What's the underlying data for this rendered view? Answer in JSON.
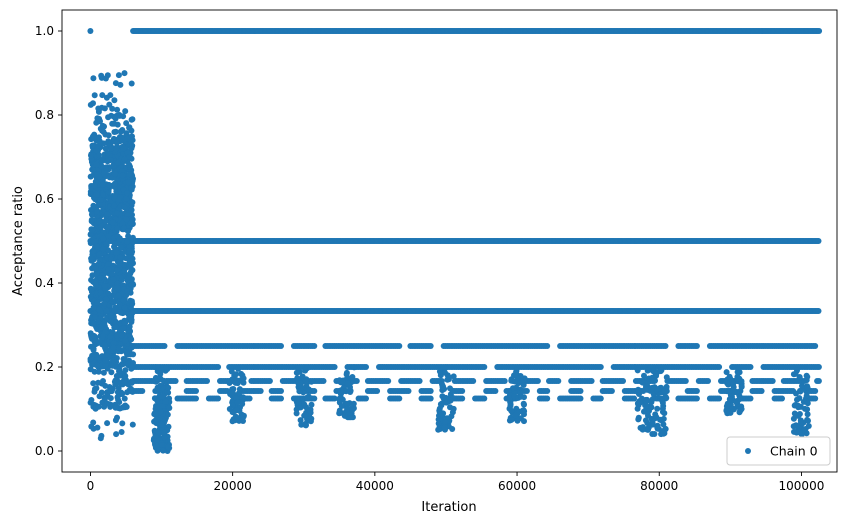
{
  "chart_data": {
    "type": "scatter",
    "xlabel": "Iteration",
    "ylabel": "Acceptance ratio",
    "xlim": [
      -4000,
      105000
    ],
    "ylim": [
      -0.05,
      1.05
    ],
    "x_ticks": [
      0,
      20000,
      40000,
      60000,
      80000,
      100000
    ],
    "x_tick_labels": [
      "0",
      "20000",
      "40000",
      "60000",
      "80000",
      "100000"
    ],
    "y_ticks": [
      0.0,
      0.2,
      0.4,
      0.6,
      0.8,
      1.0
    ],
    "y_tick_labels": [
      "0.0",
      "0.2",
      "0.4",
      "0.6",
      "0.8",
      "1.0"
    ],
    "grid": false,
    "legend": {
      "position": "bottom-right",
      "entries": [
        "Chain 0"
      ]
    },
    "colors": {
      "series": "#1f77b4"
    },
    "series": [
      {
        "name": "Chain 0",
        "x_range": [
          0,
          102500
        ],
        "bands": [
          {
            "y": 1.0,
            "x_from": 6000,
            "x_to": 102500
          },
          {
            "y": 0.5,
            "x_from": 0,
            "x_to": 102500
          },
          {
            "y": 0.3333,
            "x_from": 0,
            "x_to": 102500
          },
          {
            "y": 0.25,
            "x_from": 6000,
            "x_to": 102500
          },
          {
            "y": 0.2,
            "x_from": 6000,
            "x_to": 102500
          },
          {
            "y": 0.1667,
            "x_from": 6000,
            "x_to": 102500
          },
          {
            "y": 0.1429,
            "x_from": 6000,
            "x_to": 102500
          },
          {
            "y": 0.125,
            "x_from": 6000,
            "x_to": 102500
          }
        ],
        "burn_in_cluster": {
          "x_from": 0,
          "x_to": 6000,
          "y_from": 0.03,
          "y_to": 0.9
        },
        "dips": [
          {
            "x": 10000,
            "y_min": 0.0
          },
          {
            "x": 20500,
            "y_min": 0.07
          },
          {
            "x": 30000,
            "y_min": 0.06
          },
          {
            "x": 36000,
            "y_min": 0.08
          },
          {
            "x": 50000,
            "y_min": 0.05
          },
          {
            "x": 60000,
            "y_min": 0.07
          },
          {
            "x": 78000,
            "y_min": 0.05
          },
          {
            "x": 80000,
            "y_min": 0.04
          },
          {
            "x": 90500,
            "y_min": 0.09
          },
          {
            "x": 100000,
            "y_min": 0.04
          }
        ],
        "outliers": [
          {
            "x": 0,
            "y": 1.0
          },
          {
            "x": 4000,
            "y": 0.895
          },
          {
            "x": 5800,
            "y": 0.875
          }
        ]
      }
    ]
  }
}
